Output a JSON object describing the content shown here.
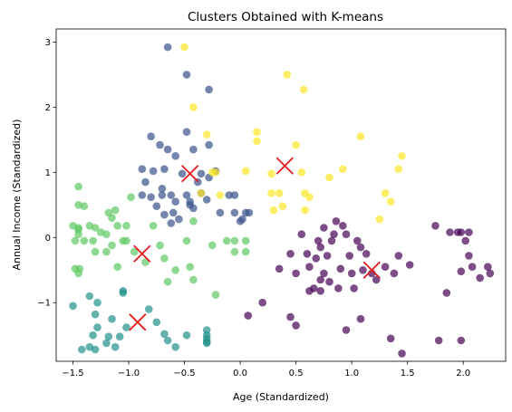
{
  "chart_data": {
    "type": "scatter",
    "title": "Clusters Obtained with K-means",
    "xlabel": "Age (Standardized)",
    "ylabel": "Annual Income (Standardized)",
    "xlim": [
      -1.65,
      2.38
    ],
    "ylim": [
      -1.9,
      3.2
    ],
    "xticks": [
      -1.5,
      -1.0,
      -0.5,
      0.0,
      0.5,
      1.0,
      1.5,
      2.0
    ],
    "xtick_labels": [
      "−1.5",
      "−1.0",
      "−0.5",
      "0.0",
      "0.5",
      "1.0",
      "1.5",
      "2.0"
    ],
    "yticks": [
      -1,
      0,
      1,
      2,
      3
    ],
    "ytick_labels": [
      "−1",
      "0",
      "1",
      "2",
      "3"
    ],
    "grid": false,
    "point_alpha": 0.7,
    "series": [
      {
        "color": "#440154",
        "points": [
          [
            0.35,
            -0.48
          ],
          [
            0.45,
            -0.25
          ],
          [
            0.5,
            -0.55
          ],
          [
            0.55,
            0.05
          ],
          [
            0.6,
            -0.25
          ],
          [
            0.62,
            -0.45
          ],
          [
            0.66,
            -0.78
          ],
          [
            0.68,
            -0.32
          ],
          [
            0.7,
            -0.05
          ],
          [
            0.72,
            -0.65
          ],
          [
            0.75,
            0.15
          ],
          [
            0.75,
            -0.55
          ],
          [
            0.78,
            -0.28
          ],
          [
            0.8,
            -0.68
          ],
          [
            0.82,
            -0.05
          ],
          [
            0.84,
            0.05
          ],
          [
            0.86,
            0.25
          ],
          [
            0.88,
            -0.78
          ],
          [
            0.9,
            -0.48
          ],
          [
            0.92,
            0.18
          ],
          [
            0.95,
            0.05
          ],
          [
            0.98,
            -0.28
          ],
          [
            1.0,
            -0.55
          ],
          [
            1.02,
            -0.78
          ],
          [
            1.05,
            -0.05
          ],
          [
            1.08,
            -0.15
          ],
          [
            1.1,
            -0.5
          ],
          [
            1.13,
            -0.25
          ],
          [
            1.18,
            -0.55
          ],
          [
            1.22,
            -0.65
          ],
          [
            1.3,
            -0.45
          ],
          [
            1.38,
            -0.55
          ],
          [
            1.42,
            -0.28
          ],
          [
            1.52,
            -0.42
          ],
          [
            0.72,
            -0.82
          ],
          [
            0.62,
            -0.82
          ],
          [
            0.45,
            -1.22
          ],
          [
            0.5,
            -1.35
          ],
          [
            0.2,
            -1.0
          ],
          [
            0.07,
            -1.2
          ],
          [
            0.95,
            -1.42
          ],
          [
            1.08,
            -1.25
          ],
          [
            1.35,
            -1.55
          ],
          [
            1.45,
            -1.78
          ],
          [
            1.78,
            -1.58
          ],
          [
            1.98,
            -1.58
          ],
          [
            1.75,
            0.18
          ],
          [
            1.88,
            0.08
          ],
          [
            1.95,
            0.08
          ],
          [
            1.98,
            0.08
          ],
          [
            2.05,
            0.08
          ],
          [
            2.02,
            -0.05
          ],
          [
            2.05,
            -0.28
          ],
          [
            1.98,
            -0.52
          ],
          [
            2.08,
            -0.45
          ],
          [
            2.15,
            -0.62
          ],
          [
            2.22,
            -0.45
          ],
          [
            2.24,
            -0.55
          ],
          [
            1.85,
            -0.85
          ],
          [
            0.72,
            -0.15
          ]
        ]
      },
      {
        "color": "#3b528b",
        "points": [
          [
            -0.65,
            2.92
          ],
          [
            -0.48,
            2.5
          ],
          [
            -0.28,
            2.27
          ],
          [
            -0.48,
            1.62
          ],
          [
            -0.8,
            1.55
          ],
          [
            -0.72,
            1.42
          ],
          [
            -0.65,
            1.35
          ],
          [
            -0.58,
            1.25
          ],
          [
            -0.42,
            1.35
          ],
          [
            -0.28,
            1.42
          ],
          [
            -0.88,
            1.05
          ],
          [
            -0.78,
            1.02
          ],
          [
            -0.68,
            1.05
          ],
          [
            -0.52,
            0.98
          ],
          [
            -0.35,
            0.98
          ],
          [
            -0.22,
            1.02
          ],
          [
            -0.85,
            0.85
          ],
          [
            -0.7,
            0.75
          ],
          [
            -0.62,
            0.65
          ],
          [
            -0.58,
            0.55
          ],
          [
            -0.48,
            0.65
          ],
          [
            -0.45,
            0.55
          ],
          [
            -0.88,
            0.65
          ],
          [
            -0.8,
            0.62
          ],
          [
            -0.75,
            0.48
          ],
          [
            -0.68,
            0.35
          ],
          [
            -0.6,
            0.38
          ],
          [
            -0.55,
            0.28
          ],
          [
            -0.35,
            0.68
          ],
          [
            -0.3,
            0.58
          ],
          [
            -0.18,
            0.38
          ],
          [
            -0.1,
            0.65
          ],
          [
            -0.05,
            0.65
          ],
          [
            -0.05,
            0.38
          ],
          [
            0.02,
            0.28
          ],
          [
            0.05,
            0.38
          ],
          [
            0.08,
            0.38
          ],
          [
            0.0,
            0.25
          ],
          [
            -0.38,
            0.85
          ],
          [
            -0.45,
            0.5
          ],
          [
            -0.42,
            0.45
          ],
          [
            -0.7,
            0.65
          ],
          [
            -0.62,
            0.22
          ],
          [
            -0.28,
            0.92
          ]
        ]
      },
      {
        "color": "#21918c",
        "points": [
          [
            -1.5,
            -1.05
          ],
          [
            -1.35,
            -0.9
          ],
          [
            -1.28,
            -1.0
          ],
          [
            -1.3,
            -1.18
          ],
          [
            -1.28,
            -1.38
          ],
          [
            -1.32,
            -1.5
          ],
          [
            -1.42,
            -1.72
          ],
          [
            -1.35,
            -1.68
          ],
          [
            -1.3,
            -1.72
          ],
          [
            -1.2,
            -1.62
          ],
          [
            -1.18,
            -1.52
          ],
          [
            -1.12,
            -1.68
          ],
          [
            -1.08,
            -1.52
          ],
          [
            -1.05,
            -0.82
          ],
          [
            -1.05,
            -0.85
          ],
          [
            -1.02,
            -1.38
          ],
          [
            -0.82,
            -1.1
          ],
          [
            -0.75,
            -1.3
          ],
          [
            -0.68,
            -1.48
          ],
          [
            -0.65,
            -1.58
          ],
          [
            -0.58,
            -1.68
          ],
          [
            -0.48,
            -1.5
          ],
          [
            -0.3,
            -1.42
          ],
          [
            -0.3,
            -1.5
          ],
          [
            -0.3,
            -1.6
          ],
          [
            -0.3,
            -1.62
          ],
          [
            -1.15,
            -1.25
          ],
          [
            -0.3,
            -1.55
          ]
        ]
      },
      {
        "color": "#5ec962",
        "points": [
          [
            -1.45,
            0.78
          ],
          [
            -1.45,
            0.5
          ],
          [
            -1.4,
            0.48
          ],
          [
            -1.5,
            0.18
          ],
          [
            -1.45,
            0.15
          ],
          [
            -1.45,
            0.12
          ],
          [
            -1.48,
            -0.05
          ],
          [
            -1.45,
            0.05
          ],
          [
            -1.4,
            -0.05
          ],
          [
            -1.35,
            0.18
          ],
          [
            -1.3,
            0.15
          ],
          [
            -1.32,
            -0.05
          ],
          [
            -1.25,
            0.08
          ],
          [
            -1.18,
            0.38
          ],
          [
            -1.2,
            0.05
          ],
          [
            -1.12,
            0.42
          ],
          [
            -1.1,
            0.18
          ],
          [
            -1.02,
            0.18
          ],
          [
            -0.98,
            0.62
          ],
          [
            -1.05,
            -0.05
          ],
          [
            -1.15,
            -0.12
          ],
          [
            -1.2,
            -0.22
          ],
          [
            -1.3,
            -0.22
          ],
          [
            -1.48,
            -0.48
          ],
          [
            -1.44,
            -0.48
          ],
          [
            -1.45,
            -0.55
          ],
          [
            -1.1,
            -0.45
          ],
          [
            -1.02,
            -0.05
          ],
          [
            -0.95,
            -0.22
          ],
          [
            -0.85,
            -0.38
          ],
          [
            -0.78,
            0.18
          ],
          [
            -0.72,
            -0.12
          ],
          [
            -0.68,
            -0.32
          ],
          [
            -0.65,
            -0.68
          ],
          [
            -0.58,
            -0.5
          ],
          [
            -0.48,
            -0.05
          ],
          [
            -0.45,
            -0.45
          ],
          [
            -0.42,
            -0.65
          ],
          [
            -0.42,
            0.25
          ],
          [
            -0.25,
            -0.12
          ],
          [
            -0.22,
            -0.88
          ],
          [
            -0.12,
            -0.05
          ],
          [
            -0.05,
            -0.05
          ],
          [
            0.05,
            -0.05
          ],
          [
            0.05,
            -0.22
          ],
          [
            -0.05,
            -0.22
          ],
          [
            -1.15,
            0.3
          ]
        ]
      },
      {
        "color": "#fde725",
        "points": [
          [
            -0.5,
            2.92
          ],
          [
            -0.42,
            2.0
          ],
          [
            0.42,
            2.5
          ],
          [
            0.57,
            2.27
          ],
          [
            0.15,
            1.62
          ],
          [
            0.15,
            1.48
          ],
          [
            -0.3,
            1.58
          ],
          [
            -0.25,
            1.0
          ],
          [
            -0.35,
            0.68
          ],
          [
            -0.18,
            0.65
          ],
          [
            0.05,
            1.02
          ],
          [
            0.28,
            0.98
          ],
          [
            0.5,
            1.42
          ],
          [
            0.55,
            1.0
          ],
          [
            0.28,
            0.68
          ],
          [
            0.35,
            0.68
          ],
          [
            0.3,
            0.42
          ],
          [
            0.38,
            0.48
          ],
          [
            0.58,
            0.68
          ],
          [
            0.62,
            0.62
          ],
          [
            0.58,
            0.42
          ],
          [
            0.8,
            0.92
          ],
          [
            0.92,
            1.05
          ],
          [
            1.08,
            1.55
          ],
          [
            1.3,
            0.68
          ],
          [
            1.35,
            0.55
          ],
          [
            1.42,
            1.05
          ],
          [
            1.45,
            1.25
          ],
          [
            1.25,
            0.28
          ],
          [
            -0.22,
            1.0
          ]
        ]
      }
    ],
    "centroids": [
      [
        1.18,
        -0.5
      ],
      [
        -0.45,
        0.98
      ],
      [
        -0.92,
        -1.3
      ],
      [
        -0.88,
        -0.25
      ],
      [
        0.4,
        1.1
      ]
    ],
    "centroid_color": "#e41a1c"
  }
}
